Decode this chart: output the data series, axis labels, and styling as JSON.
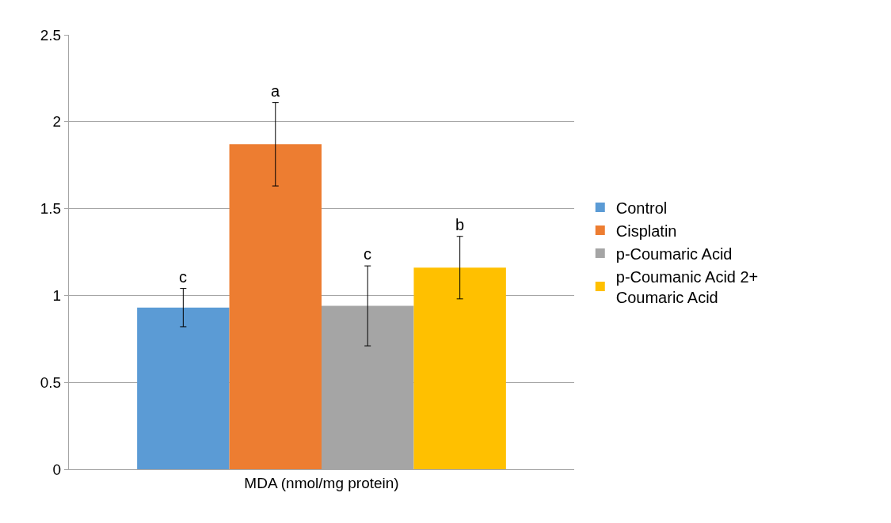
{
  "chart_data": {
    "type": "bar",
    "categories": [
      "MDA (nmol/mg protein)"
    ],
    "series": [
      {
        "name": "Control",
        "color": "#5b9bd5",
        "values": [
          0.93
        ],
        "errors": [
          [
            0.82,
            1.04
          ]
        ]
      },
      {
        "name": "Cisplatin",
        "color": "#ed7d31",
        "values": [
          1.87
        ],
        "errors": [
          [
            1.63,
            2.11
          ]
        ]
      },
      {
        "name": "p-Coumaric Acid",
        "color": "#a5a5a5",
        "values": [
          0.94
        ],
        "errors": [
          [
            0.71,
            1.17
          ]
        ]
      },
      {
        "name": "p-Coumanic Acid 2+ Coumaric Acid",
        "color": "#ffc000",
        "values": [
          1.16
        ],
        "errors": [
          [
            0.98,
            1.34
          ]
        ]
      }
    ],
    "annotations": [
      "c",
      "a",
      "c",
      "b"
    ],
    "ylim": [
      0,
      2.5
    ],
    "yticks": [
      0,
      0.5,
      1,
      1.5,
      2,
      2.5
    ],
    "grid": "y",
    "legend": "right"
  }
}
